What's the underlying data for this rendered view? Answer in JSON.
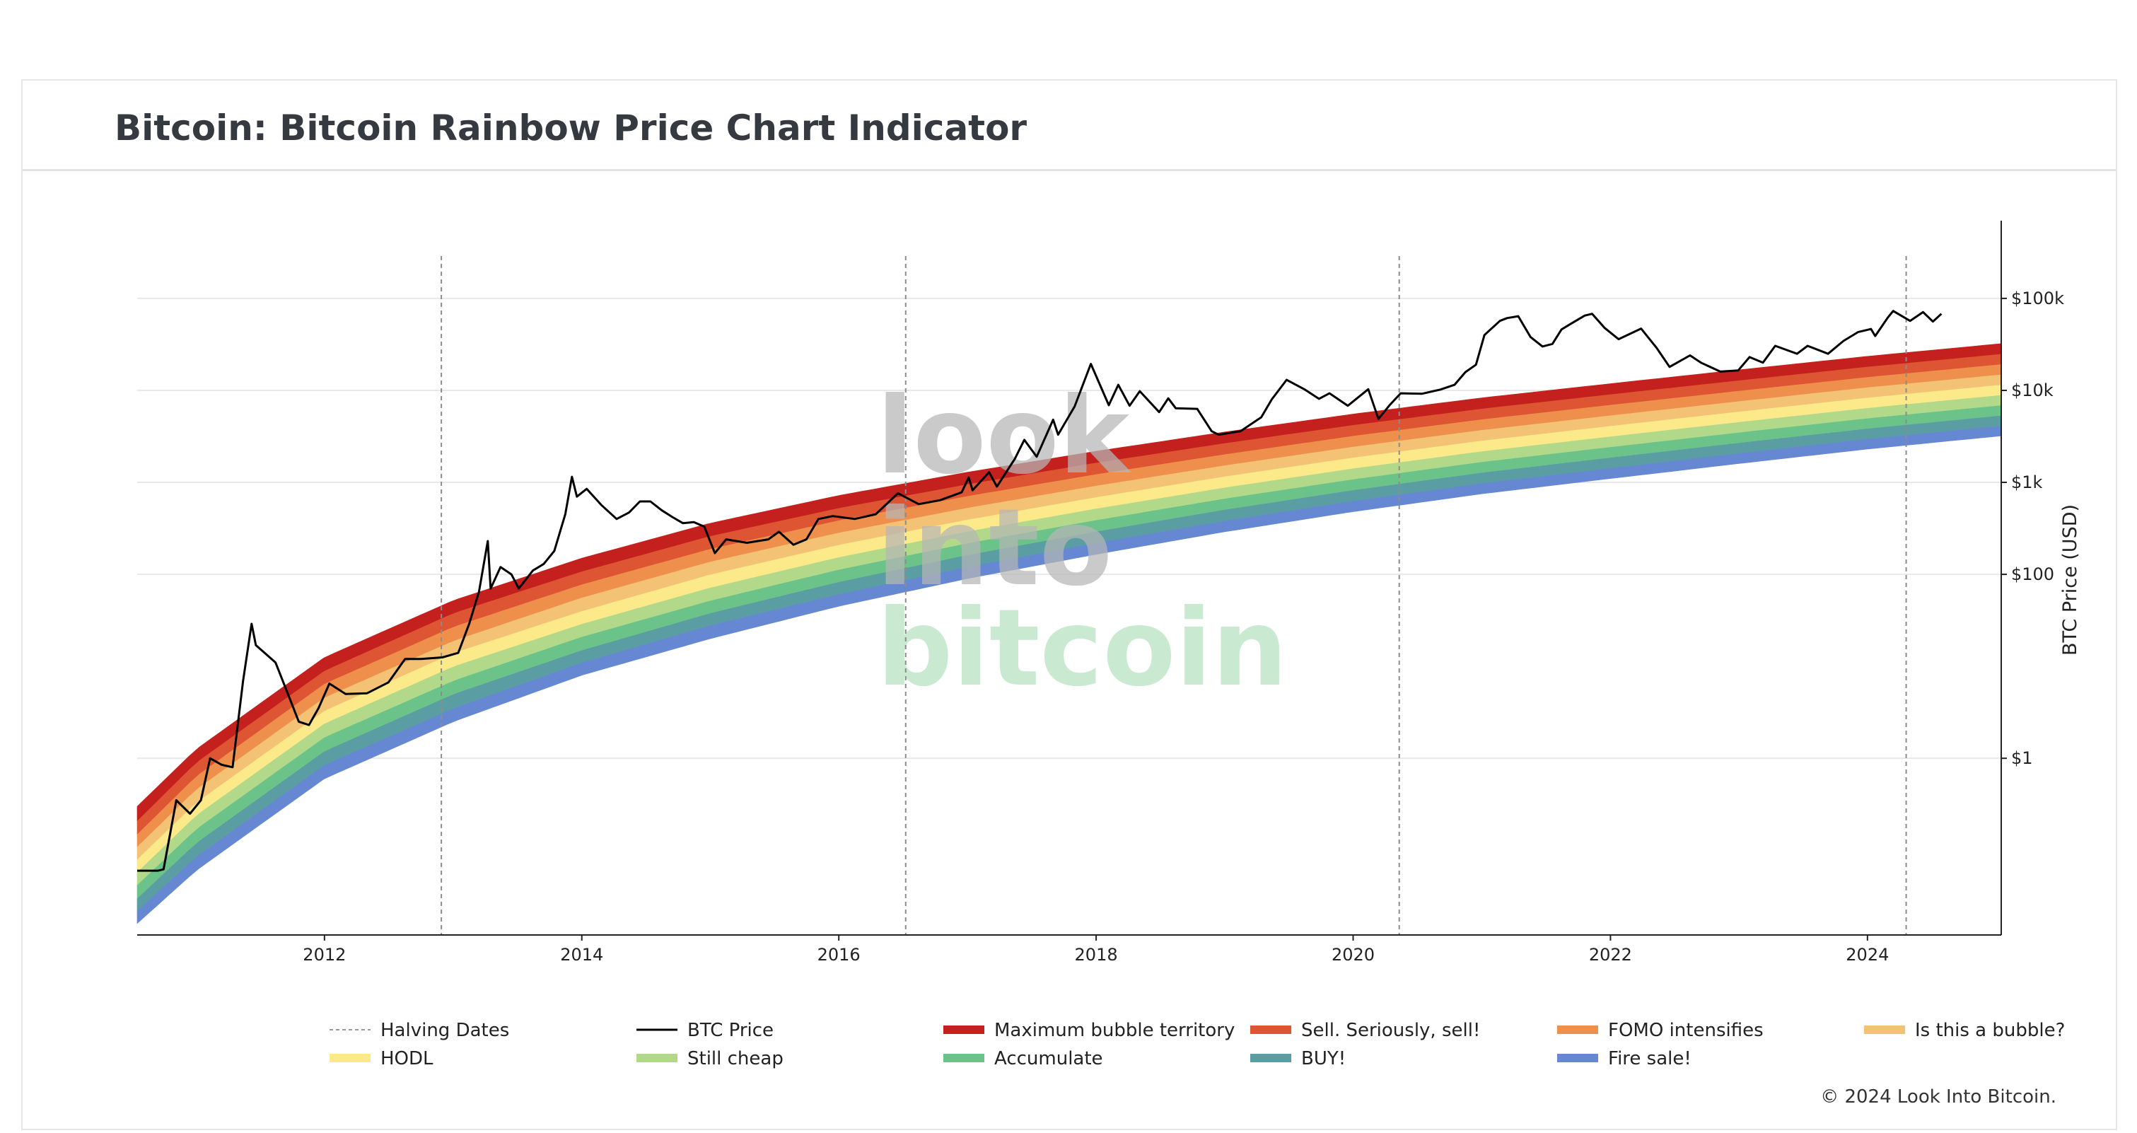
{
  "page": {
    "title": "Bitcoin: Bitcoin Rainbow Price Chart Indicator",
    "watermark": [
      "look",
      "into",
      "bitcoin"
    ],
    "copyright": "© 2024 Look Into Bitcoin."
  },
  "chart_data": {
    "type": "area",
    "title": "Bitcoin: Bitcoin Rainbow Price Chart Indicator",
    "xlabel": "",
    "ylabel": "BTC Price (USD)",
    "y_scale": "log",
    "xlim": [
      "2010-07-18",
      "2025-01-15"
    ],
    "ylim": [
      0.012,
      700000
    ],
    "x_ticks": [
      "2012",
      "2014",
      "2016",
      "2018",
      "2020",
      "2022",
      "2024"
    ],
    "x_tick_dates": [
      "2012-01-01",
      "2014-01-01",
      "2016-01-01",
      "2018-01-01",
      "2020-01-01",
      "2022-01-01",
      "2024-01-01"
    ],
    "y_ticks": [
      {
        "value": 1,
        "label": "$1"
      },
      {
        "value": 100,
        "label": "$100"
      },
      {
        "value": 1000,
        "label": "$1k"
      },
      {
        "value": 10000,
        "label": "$10k"
      },
      {
        "value": 100000,
        "label": "$100k"
      }
    ],
    "grid": true,
    "legend_position": "bottom",
    "halving_dates": [
      "2012-11-28",
      "2016-07-09",
      "2020-05-11",
      "2024-04-20"
    ],
    "bands": [
      {
        "name": "Fire sale!",
        "color": "#6688d3"
      },
      {
        "name": "BUY!",
        "color": "#5a9ea3"
      },
      {
        "name": "Accumulate",
        "color": "#6cc38a"
      },
      {
        "name": "Still cheap",
        "color": "#b2d98a"
      },
      {
        "name": "HODL",
        "color": "#fbe98a"
      },
      {
        "name": "Is this a bubble?",
        "color": "#f4c275"
      },
      {
        "name": "FOMO intensifies",
        "color": "#ee8f4c"
      },
      {
        "name": "Sell. Seriously, sell!",
        "color": "#dd5533"
      },
      {
        "name": "Maximum bubble territory",
        "color": "#c4201d"
      }
    ],
    "band_edges": [
      {
        "date": "2010-07-18",
        "values": [
          0.016,
          0.022,
          0.03,
          0.042,
          0.058,
          0.08,
          0.11,
          0.15,
          0.21,
          0.3
        ]
      },
      {
        "date": "2011-01-01",
        "values": [
          0.06,
          0.085,
          0.12,
          0.17,
          0.24,
          0.33,
          0.46,
          0.64,
          0.9,
          1.25
        ]
      },
      {
        "date": "2012-01-01",
        "values": [
          0.6,
          0.85,
          1.2,
          1.7,
          2.4,
          3.3,
          4.6,
          6.5,
          9,
          12.5
        ]
      },
      {
        "date": "2013-01-01",
        "values": [
          2.5,
          3.5,
          5,
          7,
          10,
          14,
          19,
          27,
          38,
          52
        ]
      },
      {
        "date": "2014-01-01",
        "values": [
          8,
          11,
          15,
          21,
          29,
          40,
          56,
          78,
          108,
          150
        ]
      },
      {
        "date": "2015-01-01",
        "values": [
          20,
          28,
          38,
          52,
          72,
          100,
          138,
          190,
          262,
          360
        ]
      },
      {
        "date": "2016-01-01",
        "values": [
          45,
          61,
          83,
          113,
          154,
          210,
          285,
          388,
          528,
          720
        ]
      },
      {
        "date": "2017-01-01",
        "values": [
          90,
          121,
          163,
          219,
          294,
          395,
          531,
          713,
          958,
          1290
        ]
      },
      {
        "date": "2018-01-01",
        "values": [
          165,
          220,
          293,
          390,
          520,
          693,
          923,
          1230,
          1640,
          2180
        ]
      },
      {
        "date": "2019-01-01",
        "values": [
          290,
          383,
          506,
          668,
          881,
          1163,
          1535,
          2026,
          2675,
          3530
        ]
      },
      {
        "date": "2020-01-01",
        "values": [
          480,
          630,
          826,
          1084,
          1422,
          1866,
          2448,
          3212,
          4214,
          5530
        ]
      },
      {
        "date": "2021-01-01",
        "values": [
          750,
          980,
          1280,
          1672,
          2184,
          2852,
          3724,
          4864,
          6353,
          8300
        ]
      },
      {
        "date": "2022-01-01",
        "values": [
          1100,
          1432,
          1865,
          2429,
          3163,
          4118,
          5362,
          6982,
          9091,
          11840
        ]
      },
      {
        "date": "2023-01-01",
        "values": [
          1600,
          2077,
          2696,
          3499,
          4541,
          5893,
          7648,
          9925,
          12880,
          16720
        ]
      },
      {
        "date": "2024-01-01",
        "values": [
          2300,
          2977,
          3854,
          4989,
          6458,
          8359,
          10820,
          14006,
          18130,
          23470
        ]
      },
      {
        "date": "2025-01-15",
        "values": [
          3200,
          4136,
          5346,
          6911,
          8934,
          11549,
          14930,
          19300,
          24950,
          32250
        ]
      }
    ],
    "series": [
      {
        "name": "BTC Price",
        "color": "#000000",
        "x": [
          "2010-07-18",
          "2010-09-15",
          "2010-10-01",
          "2010-11-06",
          "2010-12-15",
          "2011-01-15",
          "2011-02-10",
          "2011-03-15",
          "2011-04-15",
          "2011-05-15",
          "2011-06-08",
          "2011-06-20",
          "2011-07-15",
          "2011-08-15",
          "2011-09-15",
          "2011-10-20",
          "2011-11-18",
          "2011-12-15",
          "2012-01-15",
          "2012-03-01",
          "2012-05-01",
          "2012-07-01",
          "2012-08-17",
          "2012-10-01",
          "2012-12-01",
          "2013-01-15",
          "2013-02-15",
          "2013-03-15",
          "2013-04-09",
          "2013-04-17",
          "2013-05-15",
          "2013-06-15",
          "2013-07-06",
          "2013-08-15",
          "2013-09-15",
          "2013-10-15",
          "2013-11-15",
          "2013-12-04",
          "2013-12-18",
          "2014-01-15",
          "2014-02-25",
          "2014-04-10",
          "2014-05-15",
          "2014-06-15",
          "2014-07-15",
          "2014-08-15",
          "2014-09-15",
          "2014-10-15",
          "2014-11-15",
          "2014-12-15",
          "2015-01-14",
          "2015-02-15",
          "2015-04-15",
          "2015-06-15",
          "2015-07-15",
          "2015-08-25",
          "2015-10-01",
          "2015-11-04",
          "2015-12-15",
          "2016-02-15",
          "2016-04-15",
          "2016-06-17",
          "2016-08-15",
          "2016-10-15",
          "2016-12-15",
          "2017-01-04",
          "2017-01-15",
          "2017-03-03",
          "2017-03-25",
          "2017-05-15",
          "2017-06-11",
          "2017-07-16",
          "2017-09-01",
          "2017-09-15",
          "2017-11-01",
          "2017-12-17",
          "2018-02-06",
          "2018-03-05",
          "2018-04-06",
          "2018-05-05",
          "2018-06-29",
          "2018-07-25",
          "2018-08-15",
          "2018-10-15",
          "2018-11-25",
          "2018-12-15",
          "2019-02-15",
          "2019-04-15",
          "2019-05-15",
          "2019-06-26",
          "2019-08-15",
          "2019-09-26",
          "2019-10-26",
          "2019-12-17",
          "2020-02-13",
          "2020-03-13",
          "2020-04-15",
          "2020-05-15",
          "2020-07-15",
          "2020-09-05",
          "2020-10-15",
          "2020-11-15",
          "2020-12-15",
          "2021-01-08",
          "2021-02-21",
          "2021-03-13",
          "2021-04-14",
          "2021-05-19",
          "2021-06-22",
          "2021-07-20",
          "2021-08-15",
          "2021-09-07",
          "2021-10-20",
          "2021-11-10",
          "2021-12-15",
          "2022-01-24",
          "2022-03-29",
          "2022-05-12",
          "2022-06-18",
          "2022-08-15",
          "2022-09-15",
          "2022-11-09",
          "2022-12-30",
          "2023-01-31",
          "2023-03-10",
          "2023-04-14",
          "2023-06-15",
          "2023-07-15",
          "2023-09-11",
          "2023-10-25",
          "2023-12-05",
          "2024-01-11",
          "2024-01-23",
          "2024-02-28",
          "2024-03-14",
          "2024-05-01",
          "2024-06-07",
          "2024-07-05",
          "2024-07-29"
        ],
        "values": [
          0.06,
          0.06,
          0.062,
          0.35,
          0.25,
          0.35,
          1.0,
          0.85,
          0.8,
          7,
          29,
          17,
          14,
          11,
          5.5,
          2.5,
          2.3,
          3.5,
          6.5,
          5.0,
          5.1,
          6.7,
          12,
          12,
          12.5,
          14,
          29,
          65,
          230,
          70,
          120,
          100,
          70,
          110,
          130,
          180,
          450,
          1150,
          700,
          850,
          570,
          400,
          470,
          620,
          620,
          500,
          420,
          360,
          370,
          330,
          170,
          240,
          220,
          240,
          290,
          210,
          240,
          400,
          430,
          400,
          450,
          760,
          580,
          640,
          780,
          1130,
          820,
          1290,
          900,
          1800,
          2900,
          1900,
          4800,
          3300,
          6700,
          19400,
          6900,
          11500,
          6800,
          9800,
          5800,
          8200,
          6400,
          6300,
          3600,
          3300,
          3600,
          5100,
          8000,
          13000,
          10300,
          8100,
          9300,
          6800,
          10300,
          4900,
          7000,
          9300,
          9200,
          10200,
          11500,
          15800,
          19000,
          40000,
          57000,
          61000,
          64000,
          38000,
          30000,
          32000,
          46000,
          52000,
          65000,
          68000,
          48000,
          36000,
          47000,
          29000,
          18000,
          24000,
          20000,
          16000,
          16500,
          23000,
          20000,
          30500,
          25000,
          30500,
          25000,
          34500,
          43000,
          46500,
          39000,
          62000,
          73000,
          57000,
          71000,
          56000,
          68000
        ]
      }
    ]
  },
  "legend": {
    "items": [
      {
        "label": "Halving Dates",
        "color": "#9a9a9a",
        "kind": "dashed"
      },
      {
        "label": "BTC Price",
        "color": "#000000",
        "kind": "line"
      },
      {
        "label": "Maximum bubble territory",
        "color": "#c4201d",
        "kind": "thick"
      },
      {
        "label": "Sell. Seriously, sell!",
        "color": "#dd5533",
        "kind": "thick"
      },
      {
        "label": "FOMO intensifies",
        "color": "#ee8f4c",
        "kind": "thick"
      },
      {
        "label": "Is this a bubble?",
        "color": "#f4c275",
        "kind": "thick"
      },
      {
        "label": "HODL",
        "color": "#fbe98a",
        "kind": "thick"
      },
      {
        "label": "Still cheap",
        "color": "#b2d98a",
        "kind": "thick"
      },
      {
        "label": "Accumulate",
        "color": "#6cc38a",
        "kind": "thick"
      },
      {
        "label": "BUY!",
        "color": "#5a9ea3",
        "kind": "thick"
      },
      {
        "label": "Fire sale!",
        "color": "#6688d3",
        "kind": "thick"
      }
    ]
  }
}
